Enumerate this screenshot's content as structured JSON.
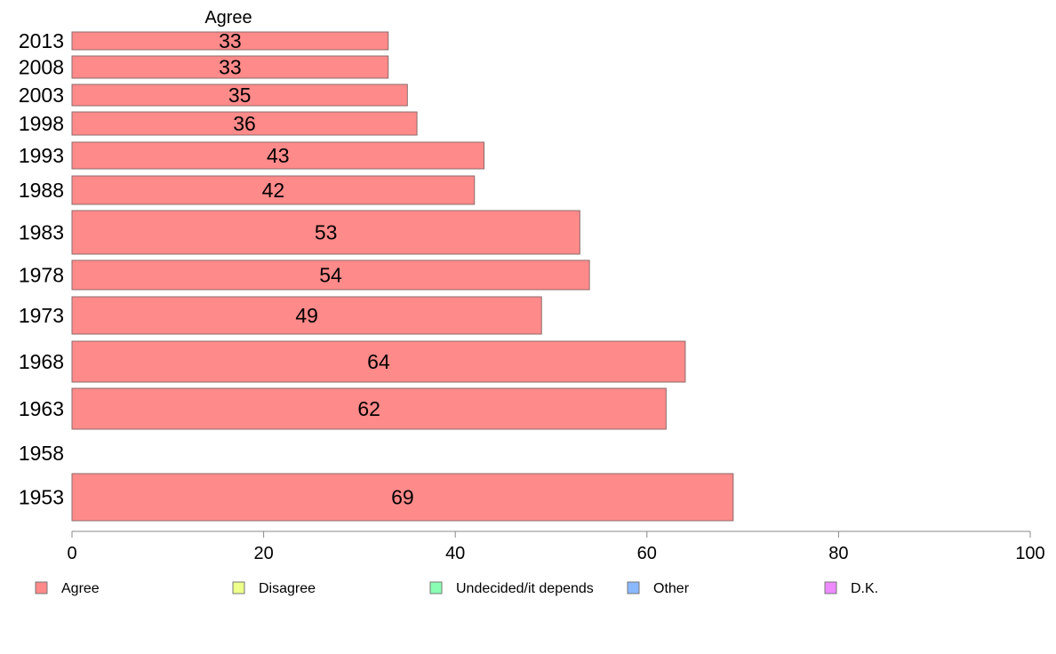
{
  "chart_data": {
    "type": "bar",
    "orientation": "horizontal",
    "column_header": "Agree",
    "categories": [
      "2013",
      "2008",
      "2003",
      "1998",
      "1993",
      "1988",
      "1983",
      "1978",
      "1973",
      "1968",
      "1963",
      "1958",
      "1953"
    ],
    "series": [
      {
        "name": "Agree",
        "color": "#ff8a8a",
        "values": [
          33,
          33,
          35,
          36,
          43,
          42,
          53,
          54,
          49,
          64,
          62,
          null,
          69
        ],
        "labels": [
          "33",
          "33",
          "35",
          "36",
          "43",
          "42",
          "53",
          "54",
          "49",
          "64",
          "62",
          "",
          "69"
        ]
      }
    ],
    "xlim": [
      0,
      100
    ],
    "xticks": [
      "0",
      "20",
      "40",
      "60",
      "80",
      "100"
    ],
    "grid": false,
    "legend": {
      "position": "bottom",
      "entries": [
        {
          "label": "Agree",
          "color": "#ff8a8a"
        },
        {
          "label": "Disagree",
          "color": "#eeff8a"
        },
        {
          "label": "Undecided/it depends",
          "color": "#8affb4"
        },
        {
          "label": "Other",
          "color": "#8ab8ff"
        },
        {
          "label": "D.K.",
          "color": "#ee8aff"
        }
      ]
    }
  }
}
